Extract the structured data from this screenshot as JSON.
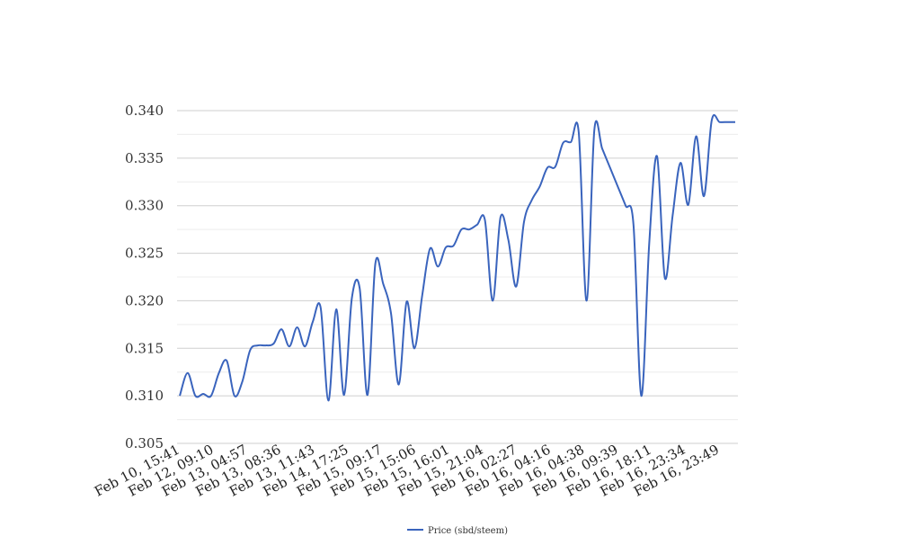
{
  "chart_data": {
    "type": "line",
    "series": [
      {
        "name": "Price (sbd/steem)",
        "color": "#3a64bd",
        "values": [
          0.31,
          0.3124,
          0.31,
          0.3102,
          0.31,
          0.3124,
          0.3137,
          0.31,
          0.3115,
          0.3148,
          0.3153,
          0.3153,
          0.3155,
          0.317,
          0.3152,
          0.3172,
          0.3152,
          0.3178,
          0.3193,
          0.3095,
          0.3191,
          0.3101,
          0.3203,
          0.3213,
          0.3101,
          0.3239,
          0.3218,
          0.3187,
          0.3112,
          0.3199,
          0.315,
          0.3206,
          0.3255,
          0.3236,
          0.3256,
          0.3258,
          0.3275,
          0.3275,
          0.328,
          0.3285,
          0.32,
          0.3288,
          0.3264,
          0.3215,
          0.3283,
          0.3306,
          0.332,
          0.334,
          0.3341,
          0.3366,
          0.3367,
          0.3377,
          0.32,
          0.338,
          0.336,
          0.334,
          0.332,
          0.33,
          0.328,
          0.31,
          0.326,
          0.3352,
          0.3224,
          0.329,
          0.3345,
          0.3301,
          0.3373,
          0.331,
          0.339,
          0.3388,
          0.3388,
          0.3388
        ]
      }
    ],
    "x_tick_labels": [
      "Feb 10, 15:41",
      "Feb 12, 09:10",
      "Feb 13, 04:57",
      "Feb 13, 08:36",
      "Feb 13, 11:43",
      "Feb 14, 17:25",
      "Feb 15, 09:17",
      "Feb 15, 15:06",
      "Feb 15, 16:01",
      "Feb 15, 21:04",
      "Feb 16, 02:27",
      "Feb 16, 04:16",
      "Feb 16, 04:38",
      "Feb 16, 09:39",
      "Feb 16, 18:11",
      "Feb 16, 23:34",
      "Feb 16, 23:49"
    ],
    "y_tick_labels": [
      "0.305",
      "0.310",
      "0.315",
      "0.320",
      "0.325",
      "0.330",
      "0.335",
      "0.340"
    ],
    "ylim": [
      0.305,
      0.34
    ],
    "major_grid_step": 0.005,
    "minor_grid": true,
    "legend_position": "bottom",
    "title": "",
    "xlabel": "",
    "ylabel": ""
  }
}
